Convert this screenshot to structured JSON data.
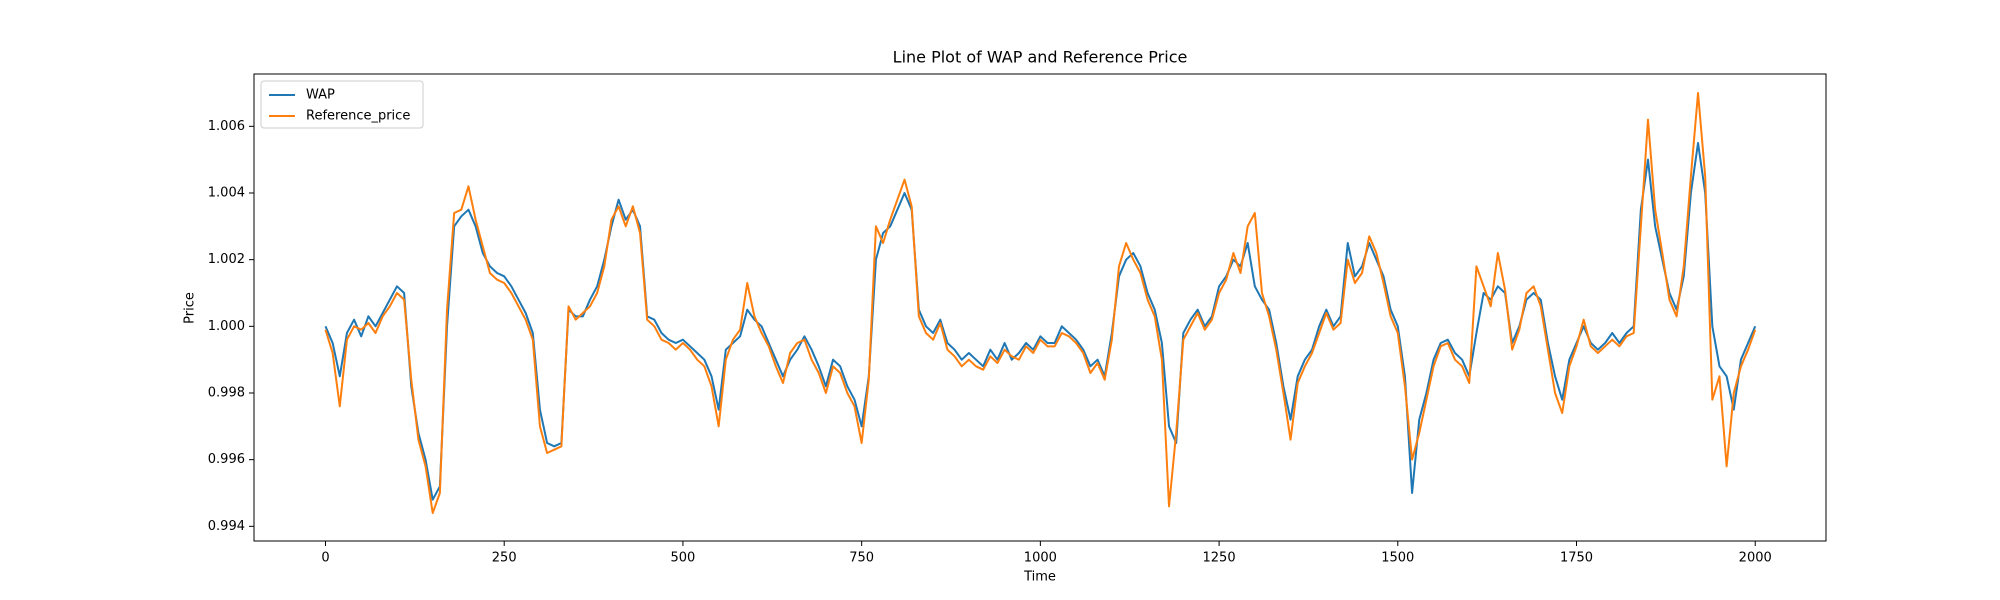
{
  "chart_data": {
    "type": "line",
    "title": "Line Plot of WAP and Reference Price",
    "xlabel": "Time",
    "ylabel": "Price",
    "x": [
      0,
      10,
      20,
      30,
      40,
      50,
      60,
      70,
      80,
      90,
      100,
      110,
      120,
      130,
      140,
      150,
      160,
      170,
      180,
      190,
      200,
      210,
      220,
      230,
      240,
      250,
      260,
      270,
      280,
      290,
      300,
      310,
      320,
      330,
      340,
      350,
      360,
      370,
      380,
      390,
      400,
      410,
      420,
      430,
      440,
      450,
      460,
      470,
      480,
      490,
      500,
      510,
      520,
      530,
      540,
      550,
      560,
      570,
      580,
      590,
      600,
      610,
      620,
      630,
      640,
      650,
      660,
      670,
      680,
      690,
      700,
      710,
      720,
      730,
      740,
      750,
      760,
      770,
      780,
      790,
      800,
      810,
      820,
      830,
      840,
      850,
      860,
      870,
      880,
      890,
      900,
      910,
      920,
      930,
      940,
      950,
      960,
      970,
      980,
      990,
      1000,
      1010,
      1020,
      1030,
      1040,
      1050,
      1060,
      1070,
      1080,
      1090,
      1100,
      1110,
      1120,
      1130,
      1140,
      1150,
      1160,
      1170,
      1180,
      1190,
      1200,
      1210,
      1220,
      1230,
      1240,
      1250,
      1260,
      1270,
      1280,
      1290,
      1300,
      1310,
      1320,
      1330,
      1340,
      1350,
      1360,
      1370,
      1380,
      1390,
      1400,
      1410,
      1420,
      1430,
      1440,
      1450,
      1460,
      1470,
      1480,
      1490,
      1500,
      1510,
      1520,
      1530,
      1540,
      1550,
      1560,
      1570,
      1580,
      1590,
      1600,
      1610,
      1620,
      1630,
      1640,
      1650,
      1660,
      1670,
      1680,
      1690,
      1700,
      1710,
      1720,
      1730,
      1740,
      1750,
      1760,
      1770,
      1780,
      1790,
      1800,
      1810,
      1820,
      1830,
      1840,
      1850,
      1860,
      1870,
      1880,
      1890,
      1900,
      1910,
      1920,
      1930,
      1940,
      1950,
      1960,
      1970,
      1980,
      1990,
      2000
    ],
    "series": [
      {
        "name": "WAP",
        "color": "#1f77b4",
        "values": [
          1.0,
          0.9995,
          0.9985,
          0.9998,
          1.0002,
          0.9997,
          1.0003,
          1.0,
          1.0004,
          1.0008,
          1.0012,
          1.001,
          0.9982,
          0.9968,
          0.996,
          0.9948,
          0.9952,
          1.0,
          1.003,
          1.0033,
          1.0035,
          1.003,
          1.0022,
          1.0018,
          1.0016,
          1.0015,
          1.0012,
          1.0008,
          1.0004,
          0.9998,
          0.9975,
          0.9965,
          0.9964,
          0.9965,
          1.0005,
          1.0003,
          1.0003,
          1.0008,
          1.0012,
          1.002,
          1.003,
          1.0038,
          1.0032,
          1.0035,
          1.003,
          1.0003,
          1.0002,
          0.9998,
          0.9996,
          0.9995,
          0.9996,
          0.9994,
          0.9992,
          0.999,
          0.9985,
          0.9975,
          0.9993,
          0.9995,
          0.9997,
          1.0005,
          1.0002,
          1.0,
          0.9995,
          0.999,
          0.9985,
          0.999,
          0.9993,
          0.9997,
          0.9993,
          0.9988,
          0.9982,
          0.999,
          0.9988,
          0.9982,
          0.9978,
          0.997,
          0.9985,
          1.002,
          1.0028,
          1.003,
          1.0035,
          1.004,
          1.0035,
          1.0005,
          1.0,
          0.9998,
          1.0002,
          0.9995,
          0.9993,
          0.999,
          0.9992,
          0.999,
          0.9988,
          0.9993,
          0.999,
          0.9995,
          0.999,
          0.9992,
          0.9995,
          0.9993,
          0.9997,
          0.9995,
          0.9995,
          1.0,
          0.9998,
          0.9996,
          0.9993,
          0.9988,
          0.999,
          0.9985,
          0.9998,
          1.0015,
          1.002,
          1.0022,
          1.0018,
          1.001,
          1.0005,
          0.9995,
          0.997,
          0.9965,
          0.9998,
          1.0002,
          1.0005,
          1.0,
          1.0003,
          1.0012,
          1.0015,
          1.002,
          1.0018,
          1.0025,
          1.0012,
          1.0008,
          1.0005,
          0.9995,
          0.9982,
          0.9972,
          0.9985,
          0.999,
          0.9993,
          1.0,
          1.0005,
          1.0,
          1.0003,
          1.0025,
          1.0015,
          1.0018,
          1.0025,
          1.002,
          1.0015,
          1.0005,
          1.0,
          0.9985,
          0.995,
          0.9972,
          0.998,
          0.999,
          0.9995,
          0.9996,
          0.9992,
          0.999,
          0.9985,
          0.9998,
          1.001,
          1.0008,
          1.0012,
          1.001,
          0.9995,
          1.0,
          1.0008,
          1.001,
          1.0008,
          0.9995,
          0.9985,
          0.9978,
          0.999,
          0.9995,
          1.0,
          0.9995,
          0.9993,
          0.9995,
          0.9998,
          0.9995,
          0.9998,
          1.0,
          1.0035,
          1.005,
          1.003,
          1.002,
          1.001,
          1.0005,
          1.0015,
          1.004,
          1.0055,
          1.004,
          1.0,
          0.9988,
          0.9985,
          0.9975,
          0.999,
          0.9995,
          1.0
        ]
      },
      {
        "name": "Reference_price",
        "color": "#ff7f0e",
        "values": [
          0.9999,
          0.9992,
          0.9976,
          0.9996,
          1.0,
          0.9999,
          1.0001,
          0.9998,
          1.0003,
          1.0006,
          1.001,
          1.0008,
          0.9984,
          0.9966,
          0.9958,
          0.9944,
          0.995,
          1.0005,
          1.0034,
          1.0035,
          1.0042,
          1.0032,
          1.0024,
          1.0016,
          1.0014,
          1.0013,
          1.001,
          1.0006,
          1.0002,
          0.9996,
          0.997,
          0.9962,
          0.9963,
          0.9964,
          1.0006,
          1.0002,
          1.0004,
          1.0006,
          1.001,
          1.0018,
          1.0032,
          1.0036,
          1.003,
          1.0036,
          1.0028,
          1.0002,
          1.0,
          0.9996,
          0.9995,
          0.9993,
          0.9995,
          0.9993,
          0.999,
          0.9988,
          0.9982,
          0.997,
          0.999,
          0.9996,
          0.9999,
          1.0013,
          1.0003,
          0.9998,
          0.9994,
          0.9988,
          0.9983,
          0.9992,
          0.9995,
          0.9996,
          0.999,
          0.9986,
          0.998,
          0.9988,
          0.9986,
          0.998,
          0.9976,
          0.9965,
          0.9984,
          1.003,
          1.0025,
          1.0032,
          1.0038,
          1.0044,
          1.0036,
          1.0003,
          0.9998,
          0.9996,
          1.0001,
          0.9993,
          0.9991,
          0.9988,
          0.999,
          0.9988,
          0.9987,
          0.9991,
          0.9989,
          0.9993,
          0.9991,
          0.999,
          0.9994,
          0.9992,
          0.9996,
          0.9994,
          0.9994,
          0.9998,
          0.9997,
          0.9995,
          0.9992,
          0.9986,
          0.9989,
          0.9984,
          0.9996,
          1.0018,
          1.0025,
          1.002,
          1.0016,
          1.0008,
          1.0003,
          0.999,
          0.9946,
          0.9968,
          0.9996,
          1.0,
          1.0004,
          0.9999,
          1.0002,
          1.001,
          1.0014,
          1.0022,
          1.0016,
          1.003,
          1.0034,
          1.001,
          1.0003,
          0.9993,
          0.998,
          0.9966,
          0.9983,
          0.9988,
          0.9992,
          0.9998,
          1.0004,
          0.9999,
          1.0001,
          1.002,
          1.0013,
          1.0016,
          1.0027,
          1.0022,
          1.0013,
          1.0003,
          0.9998,
          0.9982,
          0.996,
          0.9968,
          0.9978,
          0.9988,
          0.9994,
          0.9995,
          0.999,
          0.9988,
          0.9983,
          1.0018,
          1.0012,
          1.0006,
          1.0022,
          1.0011,
          0.9993,
          0.9999,
          1.001,
          1.0012,
          1.0006,
          0.9993,
          0.998,
          0.9974,
          0.9988,
          0.9994,
          1.0002,
          0.9994,
          0.9992,
          0.9994,
          0.9996,
          0.9994,
          0.9997,
          0.9998,
          1.003,
          1.0062,
          1.0035,
          1.0022,
          1.0008,
          1.0003,
          1.0018,
          1.0045,
          1.007,
          1.0045,
          0.9978,
          0.9985,
          0.9958,
          0.998,
          0.9988,
          0.9993,
          0.9999
        ]
      }
    ],
    "xlim": [
      -100,
      2099
    ],
    "ylim": [
      0.99356,
      1.00757
    ],
    "xticks": [
      0,
      250,
      500,
      750,
      1000,
      1250,
      1500,
      1750,
      2000
    ],
    "yticks": [
      0.994,
      0.996,
      0.998,
      {
        "value": 1,
        "label": "1.000"
      },
      1.002,
      1.004,
      1.006
    ],
    "legend": "upper left"
  }
}
